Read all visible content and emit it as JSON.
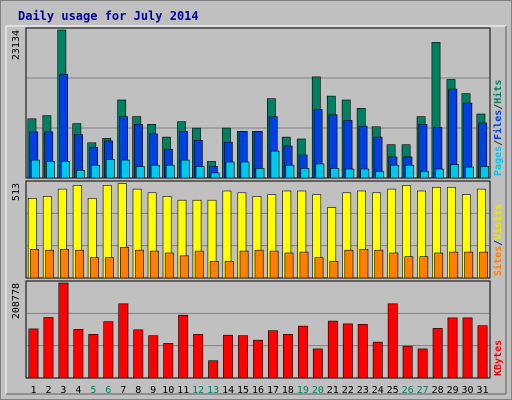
{
  "chart_data": {
    "type": "bar",
    "title": "Daily usage for July 2014",
    "days": [
      "1",
      "2",
      "3",
      "4",
      "5",
      "6",
      "7",
      "8",
      "9",
      "10",
      "11",
      "12",
      "13",
      "14",
      "15",
      "16",
      "17",
      "18",
      "19",
      "20",
      "21",
      "22",
      "23",
      "24",
      "25",
      "26",
      "27",
      "28",
      "29",
      "30",
      "31"
    ],
    "weekend_days": [
      "5",
      "6",
      "12",
      "13",
      "19",
      "20",
      "26",
      "27"
    ],
    "panels": [
      {
        "id": "pages-files-hits",
        "max_label": "23134",
        "ymax": 23134,
        "label_parts": [
          {
            "text": "Pages",
            "color": "#00c8e8"
          },
          {
            "text": "/",
            "color": "#333333"
          },
          {
            "text": "Files",
            "color": "#0040e0"
          },
          {
            "text": "/",
            "color": "#333333"
          },
          {
            "text": "Hits",
            "color": "#008060"
          }
        ],
        "series": [
          {
            "name": "Hits",
            "color": "#008060",
            "values": [
              9250,
              9750,
              23134,
              8500,
              5500,
              6200,
              12200,
              9600,
              8400,
              6400,
              8800,
              7800,
              2600,
              7800,
              7300,
              7300,
              12400,
              6400,
              6100,
              15800,
              12800,
              12200,
              10900,
              8000,
              5200,
              5200,
              9600,
              21200,
              15400,
              13200,
              10000
            ]
          },
          {
            "name": "Files",
            "color": "#0040e0",
            "values": [
              7200,
              7200,
              16200,
              6800,
              4800,
              5800,
              9600,
              8400,
              6900,
              4500,
              7300,
              5900,
              1800,
              5600,
              7300,
              7300,
              9600,
              5000,
              3600,
              10700,
              9900,
              9000,
              8100,
              6400,
              3300,
              3300,
              8400,
              7900,
              13900,
              11700,
              8600
            ]
          },
          {
            "name": "Pages",
            "color": "#00c8e8",
            "values": [
              2800,
              2600,
              2600,
              1200,
              2000,
              2900,
              2800,
              1800,
              2000,
              2000,
              2800,
              1800,
              800,
              2500,
              2500,
              1500,
              4200,
              2000,
              1500,
              2200,
              1500,
              1400,
              1400,
              1000,
              2000,
              2000,
              1000,
              1400,
              2100,
              1700,
              1800
            ]
          }
        ]
      },
      {
        "id": "visits-sites",
        "max_label": "513",
        "ymax": 513,
        "label_parts": [
          {
            "text": "Sites",
            "color": "#ff8000"
          },
          {
            "text": "/",
            "color": "#333333"
          },
          {
            "text": "Visits",
            "color": "#e8e800"
          }
        ],
        "series": [
          {
            "name": "Visits",
            "color": "#ffff00",
            "values": [
              430,
              440,
              480,
              500,
              430,
              500,
              510,
              480,
              460,
              440,
              420,
              420,
              420,
              470,
              460,
              440,
              450,
              470,
              470,
              450,
              380,
              460,
              470,
              460,
              480,
              500,
              470,
              490,
              490,
              450,
              480
            ]
          },
          {
            "name": "Sites",
            "color": "#ff8000",
            "values": [
              155,
              150,
              155,
              150,
              110,
              110,
              165,
              150,
              145,
              135,
              120,
              145,
              90,
              90,
              145,
              150,
              145,
              135,
              140,
              110,
              90,
              150,
              155,
              150,
              135,
              115,
              115,
              135,
              140,
              140,
              140
            ]
          }
        ]
      },
      {
        "id": "kbytes",
        "max_label": "208778",
        "ymax": 208778,
        "label_parts": [
          {
            "text": "KBytes",
            "color": "#ff0000"
          }
        ],
        "series": [
          {
            "name": "KBytes",
            "color": "#ff0000",
            "values": [
              108000,
              133000,
              208778,
              107000,
              96000,
              124000,
              163000,
              106000,
              93000,
              76000,
              138000,
              96000,
              38000,
              94000,
              93000,
              83000,
              104000,
              96000,
              114000,
              64000,
              125000,
              119000,
              118000,
              79000,
              163000,
              70000,
              64000,
              109000,
              132000,
              132000,
              115000
            ]
          }
        ]
      }
    ]
  }
}
